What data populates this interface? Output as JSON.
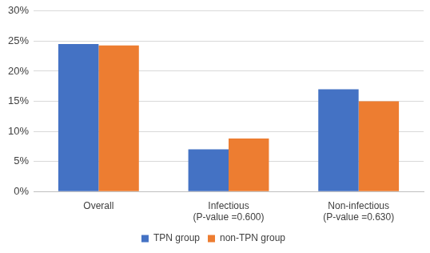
{
  "chart_data": {
    "type": "bar",
    "categories": [
      "Overall",
      [
        "Infectious",
        "(P-value =0.600)"
      ],
      [
        "Non-infectious",
        "(P-value =0.630)"
      ]
    ],
    "series": [
      {
        "name": "TPN group",
        "color": "#4472c4",
        "values": [
          24.5,
          7,
          17
        ]
      },
      {
        "name": "non-TPN group",
        "color": "#ed7d31",
        "values": [
          24.3,
          8.8,
          15
        ]
      }
    ],
    "ylim": [
      0,
      30
    ],
    "yticks": [
      {
        "value": 0,
        "label": "0%"
      },
      {
        "value": 5,
        "label": "5%"
      },
      {
        "value": 10,
        "label": "10%"
      },
      {
        "value": 15,
        "label": "15%"
      },
      {
        "value": 20,
        "label": "20%"
      },
      {
        "value": 25,
        "label": "25%"
      },
      {
        "value": 30,
        "label": "30%"
      }
    ],
    "grid": true,
    "legend": "bottom"
  }
}
